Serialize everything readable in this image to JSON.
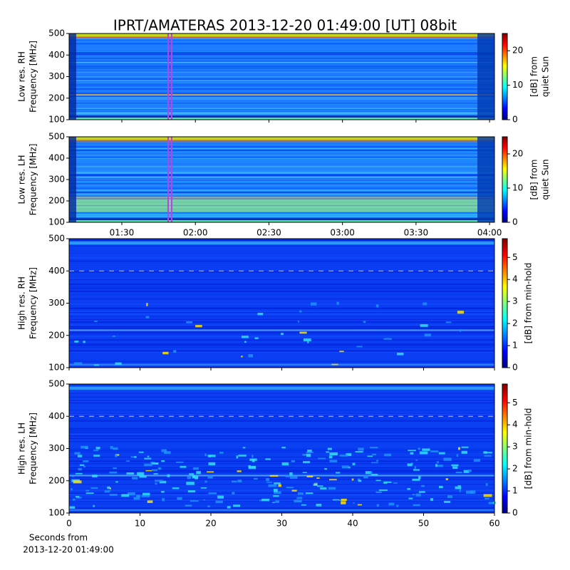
{
  "title": "IPRT/AMATERAS 2013-12-20 01:49:00 [UT]   08bit",
  "chart_data": [
    {
      "type": "spectrogram",
      "ylabel": [
        "Low res. RH",
        "Frequency [MHz]"
      ],
      "xlim": [
        68.5,
        242
      ],
      "ylim": [
        100,
        500
      ],
      "yticks": [
        100,
        200,
        300,
        400,
        500
      ],
      "colorbar": {
        "label": [
          "[dB] from",
          "quiet Sun"
        ],
        "lim": [
          0,
          25
        ],
        "ticks": [
          0,
          10,
          20
        ]
      }
    },
    {
      "type": "spectrogram",
      "ylabel": [
        "Low res. LH",
        "Frequency [MHz]"
      ],
      "xlim": [
        68.5,
        242
      ],
      "ylim": [
        100,
        500
      ],
      "yticks": [
        100,
        200,
        300,
        400,
        500
      ],
      "xticks": [
        {
          "value": 90,
          "label": "01:30"
        },
        {
          "value": 120,
          "label": "02:00"
        },
        {
          "value": 150,
          "label": "02:30"
        },
        {
          "value": 180,
          "label": "03:00"
        },
        {
          "value": 210,
          "label": "03:30"
        },
        {
          "value": 240,
          "label": "04:00"
        }
      ],
      "colorbar": {
        "label": [
          "[dB] from",
          "quiet Sun"
        ],
        "lim": [
          0,
          25
        ],
        "ticks": [
          0,
          10,
          20
        ]
      }
    },
    {
      "type": "spectrogram",
      "ylabel": [
        "High res. RH",
        "Frequency [MHz]"
      ],
      "xlim": [
        0,
        60
      ],
      "ylim": [
        100,
        500
      ],
      "yticks": [
        100,
        200,
        300,
        400,
        500
      ],
      "colorbar": {
        "label": [
          "[dB] from min-hold"
        ],
        "lim": [
          0,
          5.85
        ],
        "ticks": [
          0,
          1,
          2,
          3,
          4,
          5
        ]
      }
    },
    {
      "type": "spectrogram",
      "ylabel": [
        "High res. LH",
        "Frequency [MHz]"
      ],
      "xlim": [
        0,
        60
      ],
      "ylim": [
        100,
        500
      ],
      "yticks": [
        100,
        200,
        300,
        400,
        500
      ],
      "xticks": [
        0,
        10,
        20,
        30,
        40,
        50,
        60
      ],
      "xlabel": [
        "Seconds from",
        "2013-12-20 01:49:00"
      ],
      "colorbar": {
        "label": [
          "[dB] from min-hold"
        ],
        "lim": [
          0,
          5.85
        ],
        "ticks": [
          0,
          1,
          2,
          3,
          4,
          5
        ]
      }
    }
  ]
}
